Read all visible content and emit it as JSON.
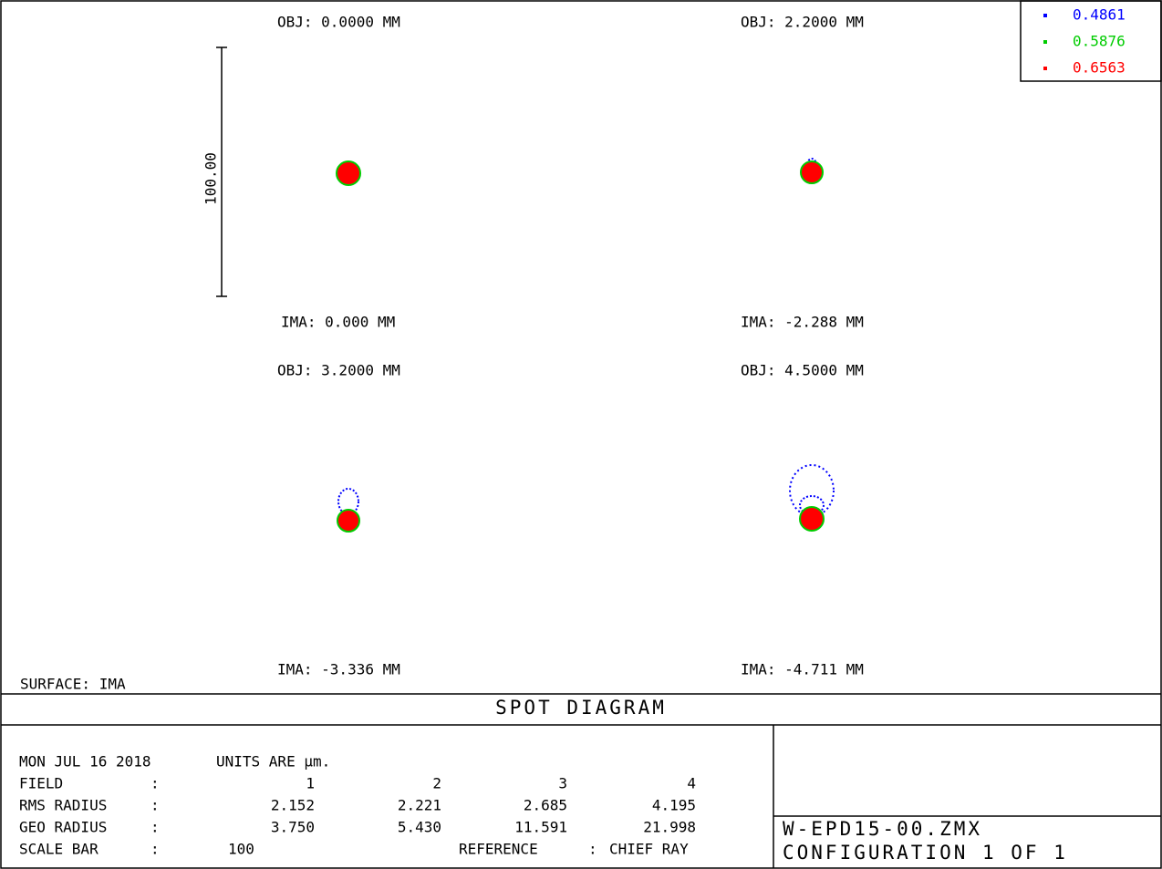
{
  "fields": [
    {
      "obj": "OBJ: 0.0000 MM",
      "ima": "IMA: 0.000 MM"
    },
    {
      "obj": "OBJ: 2.2000 MM",
      "ima": "IMA: -2.288 MM"
    },
    {
      "obj": "OBJ: 3.2000 MM",
      "ima": "IMA: -3.336 MM"
    },
    {
      "obj": "OBJ: 4.5000 MM",
      "ima": "IMA: -4.711 MM"
    }
  ],
  "scale_bar_label": "100.00",
  "legend": [
    {
      "label": "0.4861",
      "color": "#0000ff"
    },
    {
      "label": "0.5876",
      "color": "#00cc00"
    },
    {
      "label": "0.6563",
      "color": "#ff0000"
    }
  ],
  "surface": "SURFACE: IMA",
  "title": "SPOT DIAGRAM",
  "info": {
    "rows": [
      [
        "MON JUL 16 2018",
        "UNITS ARE µm."
      ],
      [
        "FIELD",
        ":",
        "1",
        "2",
        "3",
        "4"
      ],
      [
        "RMS RADIUS",
        ":",
        "2.152",
        "2.221",
        "2.685",
        "4.195"
      ],
      [
        "GEO RADIUS",
        ":",
        "3.750",
        "5.430",
        "11.591",
        "21.998"
      ],
      [
        "SCALE BAR",
        ":",
        "100",
        "REFERENCE",
        ":",
        "CHIEF RAY"
      ]
    ]
  },
  "file": "W-EPD15-00.ZMX",
  "configuration": "CONFIGURATION 1 OF 1"
}
